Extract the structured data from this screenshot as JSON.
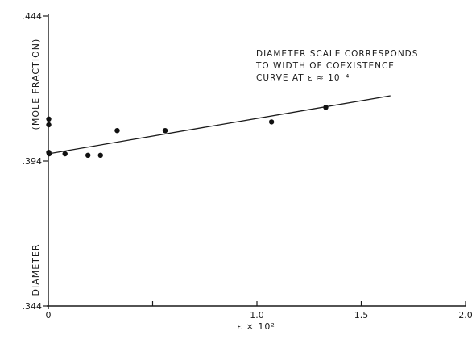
{
  "chart_data": {
    "type": "scatter",
    "title": "",
    "xlabel": "ε × 10²",
    "ylabel_parts": [
      "DIAMETER",
      "(MOLE FRACTION)"
    ],
    "xlim": [
      0,
      2.0
    ],
    "ylim": [
      0.344,
      0.444
    ],
    "x_ticks": [
      {
        "value": 0,
        "label": "0"
      },
      {
        "value": 0.5,
        "label": ""
      },
      {
        "value": 1.0,
        "label": "1.0"
      },
      {
        "value": 1.5,
        "label": "1.5"
      },
      {
        "value": 2.0,
        "label": "2.0"
      }
    ],
    "y_ticks": [
      {
        "value": 0.444,
        "label": ".444"
      },
      {
        "value": 0.394,
        "label": ".394"
      },
      {
        "value": 0.344,
        "label": ".344"
      }
    ],
    "annotation": [
      "DIAMETER SCALE CORRESPONDS",
      "TO WIDTH OF COEXISTENCE",
      "CURVE AT ε ≈ 10⁻⁴"
    ],
    "grid": false,
    "series": [
      {
        "points": [
          {
            "x": 0.002,
            "y": 0.4085
          },
          {
            "x": 0.002,
            "y": 0.4065
          },
          {
            "x": 0.002,
            "y": 0.397
          },
          {
            "x": 0.004,
            "y": 0.3965
          },
          {
            "x": 0.08,
            "y": 0.3965
          },
          {
            "x": 0.19,
            "y": 0.396
          },
          {
            "x": 0.25,
            "y": 0.396
          },
          {
            "x": 0.33,
            "y": 0.4045
          },
          {
            "x": 0.56,
            "y": 0.4045
          },
          {
            "x": 1.07,
            "y": 0.4075
          },
          {
            "x": 1.33,
            "y": 0.4125
          }
        ]
      }
    ],
    "fit_line": {
      "x": [
        0,
        1.64
      ],
      "y": [
        0.3965,
        0.4165
      ]
    }
  }
}
